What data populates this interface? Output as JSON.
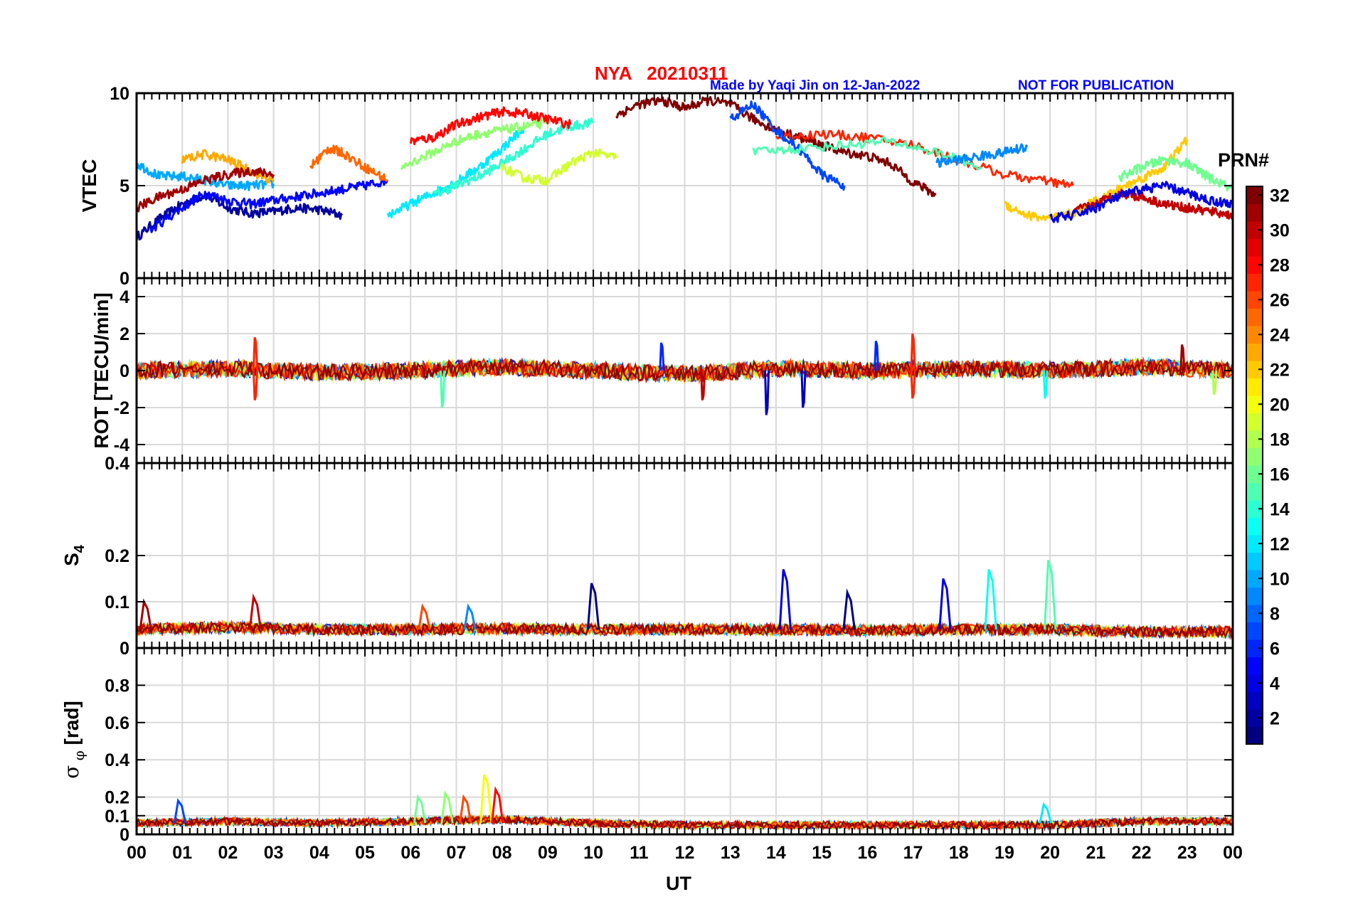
{
  "header": {
    "station_date": "NYA   20210311",
    "made_by": "Made by Yaqi Jin on 12-Jan-2022",
    "notice": "NOT FOR PUBLICATION"
  },
  "colorbar": {
    "title": "PRN#",
    "range": [
      1,
      32
    ],
    "ticks": [
      "2",
      "4",
      "6",
      "8",
      "10",
      "12",
      "14",
      "16",
      "18",
      "20",
      "22",
      "24",
      "26",
      "28",
      "30",
      "32"
    ],
    "colormap": "jet"
  },
  "x_axis": {
    "label": "UT",
    "tick_labels": [
      "00",
      "01",
      "02",
      "03",
      "04",
      "05",
      "06",
      "07",
      "08",
      "09",
      "10",
      "11",
      "12",
      "13",
      "14",
      "15",
      "16",
      "17",
      "18",
      "19",
      "20",
      "21",
      "22",
      "23",
      "00"
    ]
  },
  "panels": {
    "vtec": {
      "ylabel": "VTEC",
      "tick_labels": [
        "0",
        "5",
        "10"
      ]
    },
    "rot": {
      "ylabel": "ROT [TECU/min]",
      "tick_labels": [
        "-4",
        "-2",
        "0",
        "2",
        "4"
      ]
    },
    "s4": {
      "ylabel": "S",
      "ylabel_sub": "4",
      "tick_labels": [
        "0",
        "0.1",
        "0.2",
        "0.4"
      ]
    },
    "sigma": {
      "ylabel_sym": "σ",
      "ylabel_sub": "φ",
      "ylabel_unit": "[rad]",
      "tick_labels": [
        "0",
        "0.1",
        "0.2",
        "0.4",
        "0.6",
        "0.8"
      ]
    }
  },
  "chart_data": [
    {
      "type": "line",
      "ylabel": "VTEC",
      "xlabel": "UT",
      "xlim": [
        0,
        24
      ],
      "ylim": [
        0,
        10
      ],
      "grid": true,
      "series": [
        {
          "prn": 2,
          "x": [
            0.0,
            0.5,
            1.0,
            1.5,
            2.0,
            2.5,
            3.0,
            3.5,
            4.0,
            4.5
          ],
          "y": [
            2.2,
            3.2,
            4.0,
            4.5,
            3.8,
            3.5,
            3.6,
            3.8,
            3.7,
            3.4
          ]
        },
        {
          "prn": 5,
          "x": [
            0.3,
            1.0,
            1.5,
            2.0,
            2.5,
            3.0,
            3.5,
            4.0,
            4.5,
            5.0,
            5.5
          ],
          "y": [
            2.6,
            3.8,
            4.6,
            4.2,
            4.0,
            4.2,
            4.4,
            4.6,
            4.8,
            5.0,
            5.3
          ]
        },
        {
          "prn": 10,
          "x": [
            0.0,
            0.5,
            1.0,
            1.5,
            2.0,
            2.5,
            3.0
          ],
          "y": [
            6.2,
            5.5,
            5.5,
            5.3,
            5.0,
            5.0,
            5.1
          ]
        },
        {
          "prn": 12,
          "x": [
            5.5,
            6.0,
            6.5,
            7.0,
            7.5,
            8.0,
            8.5
          ],
          "y": [
            3.4,
            4.0,
            4.6,
            5.2,
            6.0,
            7.0,
            8.2
          ]
        },
        {
          "prn": 14,
          "x": [
            6.5,
            7.0,
            7.5,
            8.0,
            8.5,
            9.0,
            9.5,
            10.0
          ],
          "y": [
            4.5,
            5.0,
            5.5,
            6.2,
            7.0,
            7.8,
            8.2,
            8.4
          ]
        },
        {
          "prn": 17,
          "x": [
            5.8,
            6.5,
            7.0,
            7.5,
            8.0,
            8.5,
            9.0
          ],
          "y": [
            6.0,
            6.8,
            7.4,
            7.8,
            8.0,
            8.2,
            8.4
          ]
        },
        {
          "prn": 19,
          "x": [
            8.0,
            8.5,
            9.0,
            9.5,
            10.0,
            10.5
          ],
          "y": [
            6.0,
            5.4,
            5.3,
            6.2,
            6.8,
            6.5
          ]
        },
        {
          "prn": 23,
          "x": [
            1.0,
            1.5,
            2.0,
            2.5,
            3.0
          ],
          "y": [
            6.4,
            6.7,
            6.4,
            5.8,
            5.2
          ]
        },
        {
          "prn": 25,
          "x": [
            3.8,
            4.2,
            4.5,
            5.0,
            5.5
          ],
          "y": [
            6.0,
            7.0,
            6.8,
            6.0,
            5.3
          ]
        },
        {
          "prn": 28,
          "x": [
            6.0,
            6.5,
            7.0,
            7.5,
            8.0,
            8.5,
            9.0,
            9.5
          ],
          "y": [
            7.4,
            7.6,
            8.3,
            8.7,
            9.0,
            8.9,
            8.6,
            8.3
          ]
        },
        {
          "prn": 31,
          "x": [
            0.0,
            0.5,
            1.0,
            1.5,
            2.0,
            2.5,
            3.0
          ],
          "y": [
            3.8,
            4.4,
            4.8,
            5.3,
            5.6,
            5.8,
            5.6
          ]
        },
        {
          "prn": 32,
          "x": [
            10.5,
            11.0,
            11.5,
            12.0,
            12.5,
            13.0,
            13.5,
            14.0,
            14.5,
            15.0,
            15.5,
            16.0,
            16.5,
            17.0,
            17.5
          ],
          "y": [
            8.8,
            9.4,
            9.6,
            9.2,
            9.6,
            9.4,
            8.6,
            8.0,
            7.6,
            7.2,
            6.8,
            6.6,
            6.2,
            5.2,
            4.5
          ]
        },
        {
          "prn": 27,
          "x": [
            14.0,
            15.0,
            16.0,
            17.0,
            18.0,
            19.0,
            20.0,
            20.5
          ],
          "y": [
            7.6,
            7.8,
            7.6,
            7.2,
            6.4,
            5.6,
            5.2,
            5.0
          ]
        },
        {
          "prn": 7,
          "x": [
            13.0,
            13.5,
            14.0,
            14.5,
            15.0,
            15.5
          ],
          "y": [
            8.6,
            9.4,
            8.0,
            7.0,
            5.6,
            5.0
          ]
        },
        {
          "prn": 15,
          "x": [
            13.5,
            14.5,
            15.5,
            16.5,
            17.5,
            18.5
          ],
          "y": [
            6.8,
            7.0,
            7.2,
            7.4,
            6.8,
            6.0
          ]
        },
        {
          "prn": 9,
          "x": [
            17.5,
            18.0,
            18.5,
            19.0,
            19.5
          ],
          "y": [
            6.2,
            6.4,
            6.6,
            6.8,
            7.1
          ]
        },
        {
          "prn": 22,
          "x": [
            19.0,
            19.5,
            20.0,
            20.5,
            21.0,
            21.5,
            22.0,
            22.5,
            23.0
          ],
          "y": [
            4.0,
            3.4,
            3.2,
            3.5,
            4.2,
            4.8,
            5.4,
            6.0,
            7.5
          ]
        },
        {
          "prn": 16,
          "x": [
            21.5,
            22.0,
            22.5,
            23.0,
            23.5,
            24.0
          ],
          "y": [
            5.4,
            6.0,
            6.4,
            6.2,
            5.4,
            4.8
          ]
        },
        {
          "prn": 30,
          "x": [
            20.5,
            21.0,
            21.5,
            22.0,
            22.5,
            23.0,
            23.5,
            24.0
          ],
          "y": [
            3.6,
            4.0,
            4.6,
            4.4,
            4.0,
            3.8,
            3.6,
            3.4
          ]
        },
        {
          "prn": 4,
          "x": [
            20.0,
            20.5,
            21.0,
            21.5,
            22.0,
            22.5,
            23.0,
            23.5,
            24.0
          ],
          "y": [
            3.2,
            3.4,
            3.8,
            4.4,
            4.8,
            5.0,
            4.6,
            4.2,
            4.0
          ]
        }
      ]
    },
    {
      "type": "line",
      "ylabel": "ROT [TECU/min]",
      "xlabel": "UT",
      "xlim": [
        0,
        24
      ],
      "ylim": [
        -5,
        5
      ],
      "grid": true,
      "series": [
        {
          "prn": 30,
          "x": [
            0.0,
            2.0,
            4.0,
            6.0,
            8.0,
            10.0,
            12.0,
            14.0,
            16.0,
            18.0,
            20.0,
            22.0,
            24.0
          ],
          "y": [
            0,
            0.1,
            -0.1,
            0,
            0.2,
            0,
            -0.2,
            0.1,
            0,
            0.1,
            0,
            0.2,
            0
          ]
        }
      ],
      "spikes": [
        {
          "prn": 27,
          "x": 2.6,
          "y": 1.8
        },
        {
          "prn": 27,
          "x": 2.6,
          "y": -1.6
        },
        {
          "prn": 15,
          "x": 6.7,
          "y": -2.0
        },
        {
          "prn": 6,
          "x": 11.5,
          "y": 1.5
        },
        {
          "prn": 30,
          "x": 12.4,
          "y": -1.6
        },
        {
          "prn": 3,
          "x": 13.8,
          "y": -2.4
        },
        {
          "prn": 3,
          "x": 14.6,
          "y": -2.0
        },
        {
          "prn": 6,
          "x": 16.2,
          "y": 1.6
        },
        {
          "prn": 27,
          "x": 17.0,
          "y": 2.0
        },
        {
          "prn": 27,
          "x": 17.0,
          "y": -1.5
        },
        {
          "prn": 13,
          "x": 19.9,
          "y": -1.5
        },
        {
          "prn": 31,
          "x": 22.9,
          "y": 1.4
        },
        {
          "prn": 18,
          "x": 23.6,
          "y": -1.3
        }
      ]
    },
    {
      "type": "line",
      "ylabel": "S4",
      "xlabel": "UT",
      "xlim": [
        0,
        24
      ],
      "ylim": [
        0,
        0.4
      ],
      "grid": true,
      "series": [
        {
          "prn": 31,
          "x": [
            0.0,
            2.0,
            4.0,
            6.0,
            8.0,
            10.0,
            12.0,
            14.0,
            16.0,
            18.0,
            20.0,
            22.0,
            24.0
          ],
          "y": [
            0.04,
            0.045,
            0.04,
            0.04,
            0.042,
            0.04,
            0.04,
            0.04,
            0.038,
            0.04,
            0.04,
            0.035,
            0.035
          ]
        }
      ],
      "peaks": [
        {
          "prn": 31,
          "x": 0.2,
          "y": 0.1
        },
        {
          "prn": 30,
          "x": 2.6,
          "y": 0.11
        },
        {
          "prn": 26,
          "x": 6.3,
          "y": 0.09
        },
        {
          "prn": 9,
          "x": 7.3,
          "y": 0.09
        },
        {
          "prn": 1,
          "x": 10.0,
          "y": 0.14
        },
        {
          "prn": 4,
          "x": 14.2,
          "y": 0.17
        },
        {
          "prn": 1,
          "x": 15.6,
          "y": 0.12
        },
        {
          "prn": 4,
          "x": 17.7,
          "y": 0.15
        },
        {
          "prn": 13,
          "x": 18.7,
          "y": 0.17
        },
        {
          "prn": 15,
          "x": 20.0,
          "y": 0.19
        }
      ]
    },
    {
      "type": "line",
      "ylabel": "σφ [rad]",
      "xlabel": "UT",
      "xlim": [
        0,
        24
      ],
      "ylim": [
        0,
        1
      ],
      "grid": true,
      "series": [
        {
          "prn": 27,
          "x": [
            0.0,
            2.0,
            4.0,
            6.0,
            8.0,
            10.0,
            12.0,
            14.0,
            16.0,
            18.0,
            20.0,
            22.0,
            24.0
          ],
          "y": [
            0.06,
            0.07,
            0.06,
            0.07,
            0.08,
            0.06,
            0.05,
            0.05,
            0.05,
            0.05,
            0.05,
            0.07,
            0.07
          ]
        }
      ],
      "peaks": [
        {
          "prn": 7,
          "x": 0.95,
          "y": 0.18
        },
        {
          "prn": 16,
          "x": 6.2,
          "y": 0.2
        },
        {
          "prn": 17,
          "x": 6.8,
          "y": 0.22
        },
        {
          "prn": 26,
          "x": 7.2,
          "y": 0.2
        },
        {
          "prn": 20,
          "x": 7.65,
          "y": 0.32
        },
        {
          "prn": 28,
          "x": 7.9,
          "y": 0.24
        },
        {
          "prn": 12,
          "x": 19.9,
          "y": 0.16
        }
      ]
    }
  ]
}
